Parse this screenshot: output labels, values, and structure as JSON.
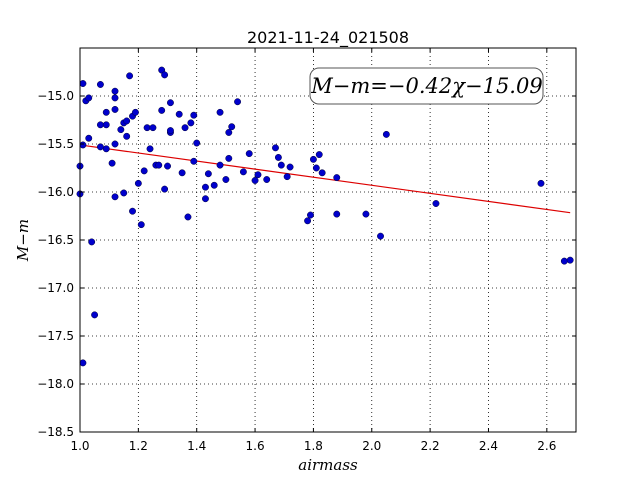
{
  "chart_data": {
    "type": "scatter",
    "title": "2021-11-24_021508",
    "xlabel": "airmass",
    "ylabel": "M−m",
    "xlim": [
      1.0,
      2.7
    ],
    "ylim": [
      -18.5,
      -14.5
    ],
    "y_inverted": false,
    "xticks": [
      1.0,
      1.2,
      1.4,
      1.6,
      1.8,
      2.0,
      2.2,
      2.4,
      2.6
    ],
    "xtick_labels": [
      "1.0",
      "1.2",
      "1.4",
      "1.6",
      "1.8",
      "2.0",
      "2.2",
      "2.4",
      "2.6"
    ],
    "yticks": [
      -15.0,
      -15.5,
      -16.0,
      -16.5,
      -17.0,
      -17.5,
      -18.0,
      -18.5
    ],
    "ytick_labels": [
      "−15.0",
      "−15.5",
      "−16.0",
      "−16.5",
      "−17.0",
      "−17.5",
      "−18.0",
      "−18.5"
    ],
    "grid": true,
    "annotation": "M−m=−0.42χ−15.09",
    "colors": {
      "points": "#0000cc",
      "fit_line": "#dd0000"
    },
    "fit": {
      "slope": -0.42,
      "intercept": -15.09,
      "x_range": [
        1.0,
        2.68
      ]
    },
    "points": [
      [
        1.0,
        -15.73
      ],
      [
        1.0,
        -16.02
      ],
      [
        1.01,
        -14.87
      ],
      [
        1.01,
        -15.51
      ],
      [
        1.01,
        -17.78
      ],
      [
        1.02,
        -15.05
      ],
      [
        1.03,
        -15.02
      ],
      [
        1.03,
        -15.44
      ],
      [
        1.04,
        -16.52
      ],
      [
        1.05,
        -17.28
      ],
      [
        1.07,
        -14.88
      ],
      [
        1.07,
        -15.3
      ],
      [
        1.07,
        -15.53
      ],
      [
        1.09,
        -15.17
      ],
      [
        1.09,
        -15.3
      ],
      [
        1.09,
        -15.55
      ],
      [
        1.11,
        -15.7
      ],
      [
        1.12,
        -14.95
      ],
      [
        1.12,
        -15.02
      ],
      [
        1.12,
        -15.14
      ],
      [
        1.12,
        -15.5
      ],
      [
        1.12,
        -16.05
      ],
      [
        1.14,
        -15.35
      ],
      [
        1.15,
        -15.28
      ],
      [
        1.15,
        -16.01
      ],
      [
        1.16,
        -15.26
      ],
      [
        1.16,
        -15.42
      ],
      [
        1.17,
        -14.79
      ],
      [
        1.18,
        -15.21
      ],
      [
        1.18,
        -16.2
      ],
      [
        1.19,
        -15.17
      ],
      [
        1.2,
        -15.91
      ],
      [
        1.21,
        -16.34
      ],
      [
        1.22,
        -15.78
      ],
      [
        1.23,
        -15.33
      ],
      [
        1.24,
        -15.55
      ],
      [
        1.25,
        -15.33
      ],
      [
        1.26,
        -15.72
      ],
      [
        1.27,
        -15.72
      ],
      [
        1.28,
        -15.15
      ],
      [
        1.28,
        -14.73
      ],
      [
        1.29,
        -14.78
      ],
      [
        1.29,
        -15.97
      ],
      [
        1.3,
        -15.73
      ],
      [
        1.31,
        -15.38
      ],
      [
        1.31,
        -15.36
      ],
      [
        1.31,
        -15.07
      ],
      [
        1.34,
        -15.19
      ],
      [
        1.35,
        -15.8
      ],
      [
        1.36,
        -15.33
      ],
      [
        1.37,
        -16.26
      ],
      [
        1.38,
        -15.28
      ],
      [
        1.39,
        -15.68
      ],
      [
        1.39,
        -15.2
      ],
      [
        1.4,
        -15.49
      ],
      [
        1.43,
        -15.95
      ],
      [
        1.43,
        -16.07
      ],
      [
        1.44,
        -15.81
      ],
      [
        1.46,
        -15.93
      ],
      [
        1.48,
        -15.17
      ],
      [
        1.48,
        -15.72
      ],
      [
        1.5,
        -15.87
      ],
      [
        1.51,
        -15.38
      ],
      [
        1.51,
        -15.65
      ],
      [
        1.52,
        -15.32
      ],
      [
        1.54,
        -15.06
      ],
      [
        1.56,
        -15.79
      ],
      [
        1.58,
        -15.6
      ],
      [
        1.6,
        -15.88
      ],
      [
        1.61,
        -15.82
      ],
      [
        1.64,
        -15.87
      ],
      [
        1.67,
        -15.54
      ],
      [
        1.68,
        -15.64
      ],
      [
        1.69,
        -15.72
      ],
      [
        1.71,
        -15.84
      ],
      [
        1.72,
        -15.74
      ],
      [
        1.78,
        -16.3
      ],
      [
        1.79,
        -16.24
      ],
      [
        1.8,
        -15.66
      ],
      [
        1.81,
        -15.75
      ],
      [
        1.82,
        -15.61
      ],
      [
        1.83,
        -15.8
      ],
      [
        1.88,
        -16.23
      ],
      [
        1.88,
        -15.85
      ],
      [
        1.98,
        -16.23
      ],
      [
        2.03,
        -16.46
      ],
      [
        2.05,
        -15.4
      ],
      [
        2.22,
        -16.12
      ],
      [
        2.58,
        -15.91
      ],
      [
        2.66,
        -16.72
      ],
      [
        2.68,
        -16.71
      ]
    ]
  }
}
